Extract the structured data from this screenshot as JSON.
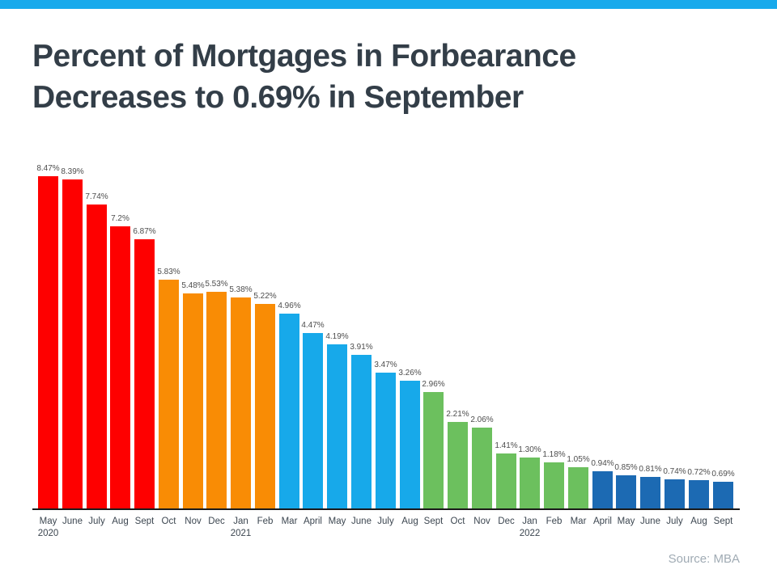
{
  "page": {
    "top_bar_color": "#18AAEC",
    "background_color": "#FFFFFF",
    "title_color": "#333E48"
  },
  "title": {
    "line1": "Percent of Mortgages in Forbearance",
    "line2": "Decreases to 0.69% in September"
  },
  "source": "Source: MBA",
  "colors": {
    "red": "#FE0000",
    "orange": "#F98C05",
    "light_blue": "#17A9EA",
    "green": "#6CC05E",
    "dark_blue": "#1C6AB3",
    "axis": "#1A1A1A",
    "value_label": "#4D4D4D",
    "tick_label": "#3C4650",
    "source_text": "#A0ABB4"
  },
  "chart_data": {
    "type": "bar",
    "title": "Percent of Mortgages in Forbearance Decreases to 0.69% in September",
    "xlabel": "",
    "ylabel": "",
    "ylim": [
      0,
      9
    ],
    "grid": false,
    "legend_position": "none",
    "categories": [
      "May",
      "June",
      "July",
      "Aug",
      "Sept",
      "Oct",
      "Nov",
      "Dec",
      "Jan",
      "Feb",
      "Mar",
      "April",
      "May",
      "June",
      "July",
      "Aug",
      "Sept",
      "Oct",
      "Nov",
      "Dec",
      "Jan",
      "Feb",
      "Mar",
      "April",
      "May",
      "June",
      "July",
      "Aug",
      "Sept"
    ],
    "year_markers": [
      {
        "index": 0,
        "year": "2020"
      },
      {
        "index": 8,
        "year": "2021"
      },
      {
        "index": 20,
        "year": "2022"
      }
    ],
    "values": [
      8.47,
      8.39,
      7.74,
      7.2,
      6.87,
      5.83,
      5.48,
      5.53,
      5.38,
      5.22,
      4.96,
      4.47,
      4.19,
      3.91,
      3.47,
      3.26,
      2.96,
      2.21,
      2.06,
      1.41,
      1.3,
      1.18,
      1.05,
      0.94,
      0.85,
      0.81,
      0.74,
      0.72,
      0.69
    ],
    "labels": [
      "8.47%",
      "8.39%",
      "7.74%",
      "7.2%",
      "6.87%",
      "5.83%",
      "5.48%",
      "5.53%",
      "5.38%",
      "5.22%",
      "4.96%",
      "4.47%",
      "4.19%",
      "3.91%",
      "3.47%",
      "3.26%",
      "2.96%",
      "2.21%",
      "2.06%",
      "1.41%",
      "1.30%",
      "1.18%",
      "1.05%",
      "0.94%",
      "0.85%",
      "0.81%",
      "0.74%",
      "0.72%",
      "0.69%"
    ],
    "bar_color_keys": [
      "red",
      "red",
      "red",
      "red",
      "red",
      "orange",
      "orange",
      "orange",
      "orange",
      "orange",
      "light_blue",
      "light_blue",
      "light_blue",
      "light_blue",
      "light_blue",
      "light_blue",
      "green",
      "green",
      "green",
      "green",
      "green",
      "green",
      "green",
      "dark_blue",
      "dark_blue",
      "dark_blue",
      "dark_blue",
      "dark_blue",
      "dark_blue"
    ]
  }
}
